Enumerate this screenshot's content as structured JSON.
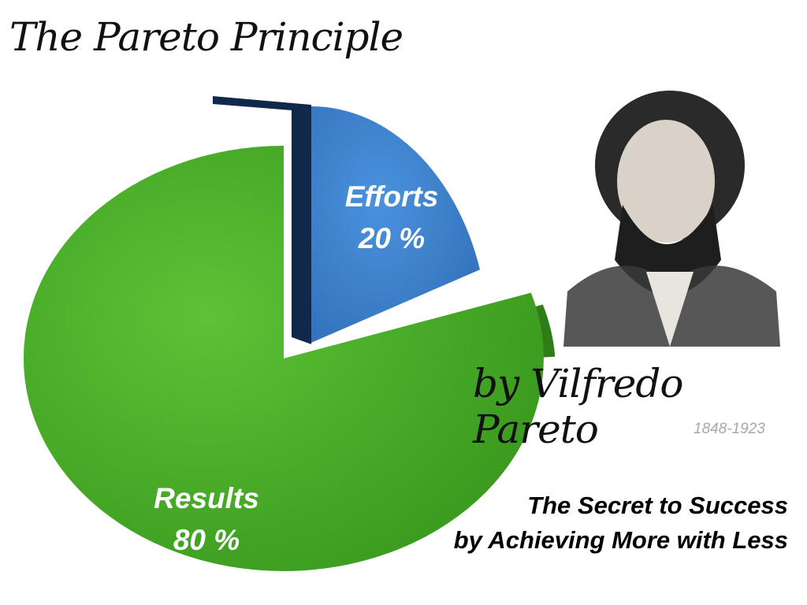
{
  "title": "The Pareto Principle",
  "byline": "by Vilfredo Pareto",
  "years": "1848-1923",
  "tagline": [
    "The Secret to Success",
    "by Achieving More with Less"
  ],
  "portrait": {
    "icon": "portrait-engraving-of-vilfredo-pareto"
  },
  "chart_data": {
    "type": "pie",
    "style": "3d-exploded",
    "slices": [
      {
        "name": "Efforts",
        "label": "20 %",
        "value": 20,
        "color": "#3c82cf",
        "side_color": "#10294a",
        "exploded": true
      },
      {
        "name": "Results",
        "label": "80 %",
        "value": 80,
        "color": "#4aac2a",
        "side_color": "#2f7d18",
        "exploded": false
      }
    ]
  }
}
